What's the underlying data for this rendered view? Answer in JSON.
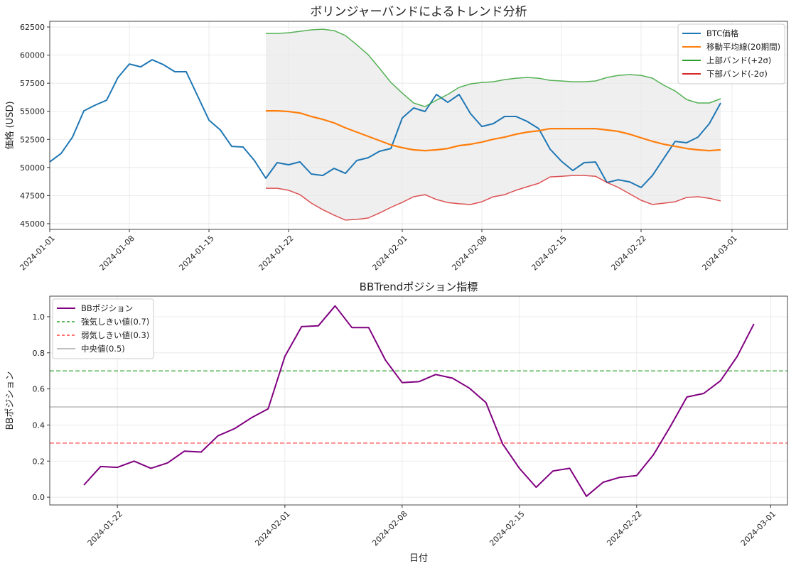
{
  "chart_data": [
    {
      "type": "line",
      "title": "ボリンジャーバンドによるトレンド分析",
      "xlabel": "",
      "ylabel": "価格 (USD)",
      "ylim": [
        44490,
        63010
      ],
      "grid": true,
      "legend_position": "top-right",
      "y_ticks": [
        "45000",
        "47500",
        "50000",
        "52500",
        "55000",
        "57500",
        "60000",
        "62500"
      ],
      "x_ticks": [
        "2024-01-01",
        "2024-01-08",
        "2024-01-15",
        "2024-01-22",
        "2024-02-01",
        "2024-02-08",
        "2024-02-15",
        "2024-02-22",
        "2024-03-01"
      ],
      "x": [
        "2024-01-01",
        "2024-01-02",
        "2024-01-03",
        "2024-01-04",
        "2024-01-05",
        "2024-01-06",
        "2024-01-07",
        "2024-01-08",
        "2024-01-09",
        "2024-01-10",
        "2024-01-11",
        "2024-01-12",
        "2024-01-13",
        "2024-01-14",
        "2024-01-15",
        "2024-01-16",
        "2024-01-17",
        "2024-01-18",
        "2024-01-19",
        "2024-01-20",
        "2024-01-21",
        "2024-01-22",
        "2024-01-23",
        "2024-01-24",
        "2024-01-25",
        "2024-01-26",
        "2024-01-27",
        "2024-01-28",
        "2024-01-29",
        "2024-01-30",
        "2024-01-31",
        "2024-02-01",
        "2024-02-02",
        "2024-02-03",
        "2024-02-04",
        "2024-02-05",
        "2024-02-06",
        "2024-02-07",
        "2024-02-08",
        "2024-02-09",
        "2024-02-10",
        "2024-02-11",
        "2024-02-12",
        "2024-02-13",
        "2024-02-14",
        "2024-02-15",
        "2024-02-16",
        "2024-02-17",
        "2024-02-18",
        "2024-02-19",
        "2024-02-20",
        "2024-02-21",
        "2024-02-22",
        "2024-02-23",
        "2024-02-24",
        "2024-02-25",
        "2024-02-26",
        "2024-02-27",
        "2024-02-28",
        "2024-02-29"
      ],
      "series": [
        {
          "name": "BTC価格",
          "color": "#1f77b4",
          "values": [
            50500,
            51250,
            52700,
            55040,
            55550,
            55990,
            58010,
            59210,
            58960,
            59590,
            59150,
            58520,
            58520,
            56370,
            54220,
            53340,
            51880,
            51820,
            50620,
            49040,
            50430,
            50240,
            50500,
            49420,
            49290,
            49920,
            49480,
            50620,
            50870,
            51440,
            51690,
            54410,
            55300,
            54980,
            56500,
            55800,
            56500,
            54790,
            53650,
            53900,
            54540,
            54540,
            54090,
            53460,
            51630,
            50550,
            49730,
            50430,
            50490,
            48660,
            48910,
            48720,
            48220,
            49290,
            50810,
            52320,
            52200,
            52700,
            53900,
            55740
          ]
        },
        {
          "name": "移動平均線(20期間)",
          "color": "#ff7f0e",
          "values": [
            null,
            null,
            null,
            null,
            null,
            null,
            null,
            null,
            null,
            null,
            null,
            null,
            null,
            null,
            null,
            null,
            null,
            null,
            null,
            55040,
            55040,
            54980,
            54850,
            54540,
            54280,
            53970,
            53530,
            53150,
            52770,
            52390,
            52010,
            51760,
            51570,
            51500,
            51570,
            51690,
            51950,
            52070,
            52260,
            52510,
            52700,
            52960,
            53150,
            53270,
            53460,
            53460,
            53460,
            53460,
            53460,
            53340,
            53210,
            52960,
            52640,
            52330,
            52070,
            51880,
            51690,
            51570,
            51500,
            51570
          ]
        },
        {
          "name": "上部バンド(+2σ)",
          "color": "#2ca02c",
          "values": [
            null,
            null,
            null,
            null,
            null,
            null,
            null,
            null,
            null,
            null,
            null,
            null,
            null,
            null,
            null,
            null,
            null,
            null,
            null,
            61930,
            61930,
            61990,
            62120,
            62250,
            62310,
            62180,
            61740,
            60920,
            60040,
            58830,
            57570,
            56620,
            55740,
            55420,
            55990,
            56500,
            57130,
            57440,
            57570,
            57630,
            57820,
            57950,
            58010,
            57950,
            57760,
            57700,
            57630,
            57630,
            57700,
            58010,
            58200,
            58270,
            58200,
            57950,
            57320,
            56810,
            56050,
            55740,
            55740,
            56120
          ]
        },
        {
          "name": "下部バンド(-2σ)",
          "color": "#d62728",
          "values": [
            null,
            null,
            null,
            null,
            null,
            null,
            null,
            null,
            null,
            null,
            null,
            null,
            null,
            null,
            null,
            null,
            null,
            null,
            null,
            48150,
            48150,
            47970,
            47580,
            46830,
            46250,
            45760,
            45320,
            45380,
            45500,
            45950,
            46450,
            46900,
            47400,
            47580,
            47150,
            46880,
            46770,
            46700,
            46950,
            47390,
            47580,
            47970,
            48290,
            48590,
            49160,
            49220,
            49290,
            49290,
            49220,
            48670,
            48220,
            47650,
            47080,
            46710,
            46820,
            46950,
            47330,
            47400,
            47260,
            47020
          ]
        }
      ],
      "band_fill_color": "#e8e8e8"
    },
    {
      "type": "line",
      "title": "BBTrendポジション指標",
      "xlabel": "日付",
      "ylabel": "BBポジション",
      "ylim": [
        -0.043,
        1.114
      ],
      "grid": true,
      "legend_position": "top-left",
      "y_ticks": [
        "0.0",
        "0.2",
        "0.4",
        "0.6",
        "0.8",
        "1.0"
      ],
      "x_ticks": [
        "2024-01-22",
        "2024-02-01",
        "2024-02-08",
        "2024-02-15",
        "2024-02-22",
        "2024-03-01"
      ],
      "x": [
        "2024-01-20",
        "2024-01-21",
        "2024-01-22",
        "2024-01-23",
        "2024-01-24",
        "2024-01-25",
        "2024-01-26",
        "2024-01-27",
        "2024-01-28",
        "2024-01-29",
        "2024-01-30",
        "2024-01-31",
        "2024-02-01",
        "2024-02-02",
        "2024-02-03",
        "2024-02-04",
        "2024-02-05",
        "2024-02-06",
        "2024-02-07",
        "2024-02-08",
        "2024-02-09",
        "2024-02-10",
        "2024-02-11",
        "2024-02-12",
        "2024-02-13",
        "2024-02-14",
        "2024-02-15",
        "2024-02-16",
        "2024-02-17",
        "2024-02-18",
        "2024-02-19",
        "2024-02-20",
        "2024-02-21",
        "2024-02-22",
        "2024-02-23",
        "2024-02-24",
        "2024-02-25",
        "2024-02-26",
        "2024-02-27",
        "2024-02-28",
        "2024-02-29"
      ],
      "series": [
        {
          "name": "BBポジション",
          "color": "#800080",
          "values": [
            0.067,
            0.17,
            0.165,
            0.2,
            0.16,
            0.19,
            0.255,
            0.25,
            0.34,
            0.38,
            0.44,
            0.49,
            0.78,
            0.945,
            0.95,
            1.06,
            0.94,
            0.94,
            0.76,
            0.635,
            0.64,
            0.68,
            0.66,
            0.605,
            0.525,
            0.295,
            0.16,
            0.055,
            0.145,
            0.16,
            0.005,
            0.083,
            0.11,
            0.12,
            0.235,
            0.39,
            0.555,
            0.575,
            0.645,
            0.78,
            0.96
          ]
        }
      ],
      "hlines": [
        {
          "name": "強気しきい値(0.7)",
          "value": 0.7,
          "color": "#2ca02c",
          "style": "dashed"
        },
        {
          "name": "弱気しきい値(0.3)",
          "value": 0.3,
          "color": "#ff4444",
          "style": "dashed"
        },
        {
          "name": "中央値(0.5)",
          "value": 0.5,
          "color": "#aaaaaa",
          "style": "solid"
        }
      ]
    }
  ]
}
